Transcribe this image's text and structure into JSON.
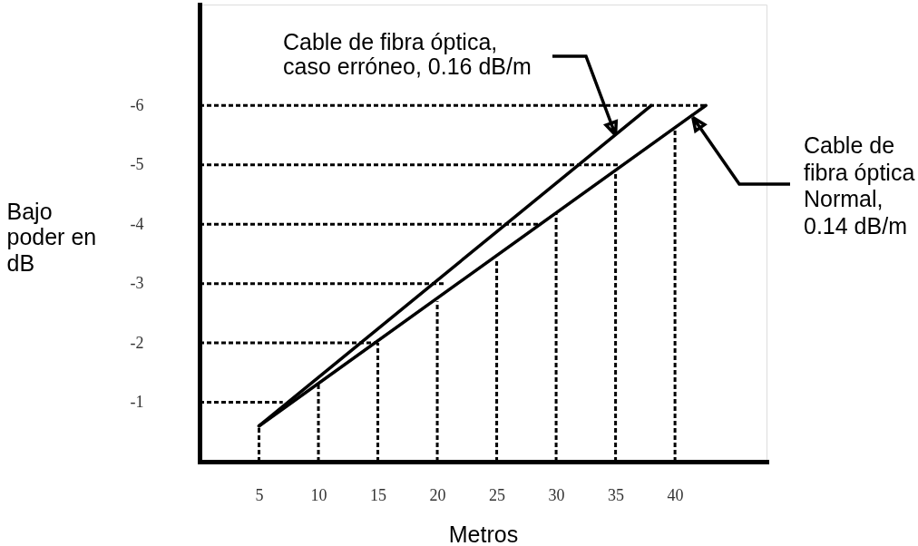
{
  "chart_data": {
    "type": "line",
    "xlabel": "Metros",
    "ylabel": "Bajo\npoder en\ndB",
    "series": [
      {
        "color": "#000000",
        "x": [
          5,
          38
        ],
        "values": [
          -0.6,
          -6
        ]
      },
      {
        "color": "#000000",
        "x": [
          5,
          42.6
        ],
        "values": [
          -0.6,
          -6
        ]
      },
      {
        "color": "#000000",
        "line_style": "dotted",
        "x": [
          5,
          5
        ],
        "values": [
          0,
          -0.6
        ]
      },
      {
        "color": "#000000",
        "line_style": "dotted",
        "x": [
          10,
          10
        ],
        "values": [
          0,
          -1.3
        ]
      },
      {
        "color": "#000000",
        "line_style": "dotted",
        "x": [
          15,
          15
        ],
        "values": [
          0,
          -2.0
        ]
      },
      {
        "color": "#000000",
        "line_style": "dotted",
        "x": [
          20,
          20
        ],
        "values": [
          0,
          -2.7
        ]
      },
      {
        "color": "#000000",
        "line_style": "dotted",
        "x": [
          25,
          25
        ],
        "values": [
          0,
          -3.4
        ]
      },
      {
        "color": "#000000",
        "line_style": "dotted",
        "x": [
          30,
          30
        ],
        "values": [
          0,
          -4.2
        ]
      },
      {
        "color": "#000000",
        "line_style": "dotted",
        "x": [
          35,
          35
        ],
        "values": [
          0,
          -4.9
        ]
      },
      {
        "color": "#000000",
        "line_style": "dotted",
        "x": [
          40,
          40
        ],
        "values": [
          0,
          -5.6
        ]
      },
      {
        "color": "#000000",
        "line_style": "dotted",
        "x": [
          0,
          7.0
        ],
        "values": [
          -1,
          -1
        ]
      },
      {
        "color": "#000000",
        "line_style": "dotted",
        "x": [
          0,
          15
        ],
        "values": [
          -2,
          -2
        ]
      },
      {
        "color": "#000000",
        "line_style": "dotted",
        "x": [
          0,
          20.7
        ],
        "values": [
          -3,
          -3
        ]
      },
      {
        "color": "#000000",
        "line_style": "dotted",
        "x": [
          0,
          28.5
        ],
        "values": [
          -4,
          -4
        ]
      },
      {
        "color": "#000000",
        "line_style": "dotted",
        "x": [
          0,
          35.3
        ],
        "values": [
          -5,
          -5
        ]
      },
      {
        "color": "#000000",
        "line_style": "dotted",
        "x": [
          0,
          42.6
        ],
        "values": [
          -6,
          -6
        ]
      }
    ],
    "xlim": [
      0,
      47.7
    ],
    "xticks": [
      5,
      10,
      15,
      20,
      25,
      30,
      35,
      40
    ],
    "ylim": [
      0,
      -7.7
    ],
    "yticks": [
      -1,
      -2,
      -3,
      -4,
      -5,
      -6
    ],
    "line_style": "solid",
    "annotations": [
      {
        "text": "Cable de fibra óptica,\ncaso erróneo, 0.16 dB/m",
        "x": 35,
        "y": -5.5
      },
      {
        "text": "Cable de\nfibra óptica\nNormal,\n0.14 dB/m",
        "x": 41.5,
        "y": -5.8
      }
    ]
  }
}
